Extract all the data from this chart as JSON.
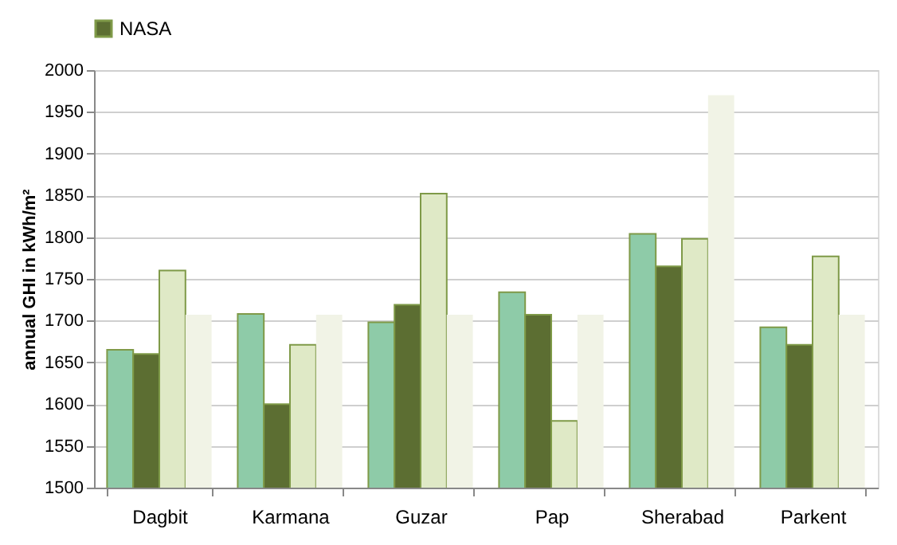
{
  "chart_data": {
    "type": "bar",
    "ylabel": "annual GHI in kWh/m²",
    "categories": [
      "Dagbit",
      "Karmana",
      "Guzar",
      "Pap",
      "Sherabad",
      "Parkent"
    ],
    "series": [
      {
        "color": "#8ecba8",
        "values": [
          1665,
          1708,
          1698,
          1734,
          1804,
          1692
        ]
      },
      {
        "name": "NASA",
        "color": "#5c6e32",
        "values": [
          1660,
          1600,
          1719,
          1707,
          1765,
          1671
        ]
      },
      {
        "color": "#dfe9c6",
        "values": [
          1760,
          1671,
          1852,
          1580,
          1798,
          1777
        ]
      },
      {
        "color": "#f1f3e6",
        "values": [
          1707,
          1707,
          1707,
          1707,
          1970,
          1707
        ]
      }
    ],
    "ylim": [
      1500,
      2000
    ],
    "yticks": [
      1500,
      1550,
      1600,
      1650,
      1700,
      1750,
      1800,
      1850,
      1900,
      1950,
      2000
    ],
    "grid": "y",
    "legend": "top"
  }
}
